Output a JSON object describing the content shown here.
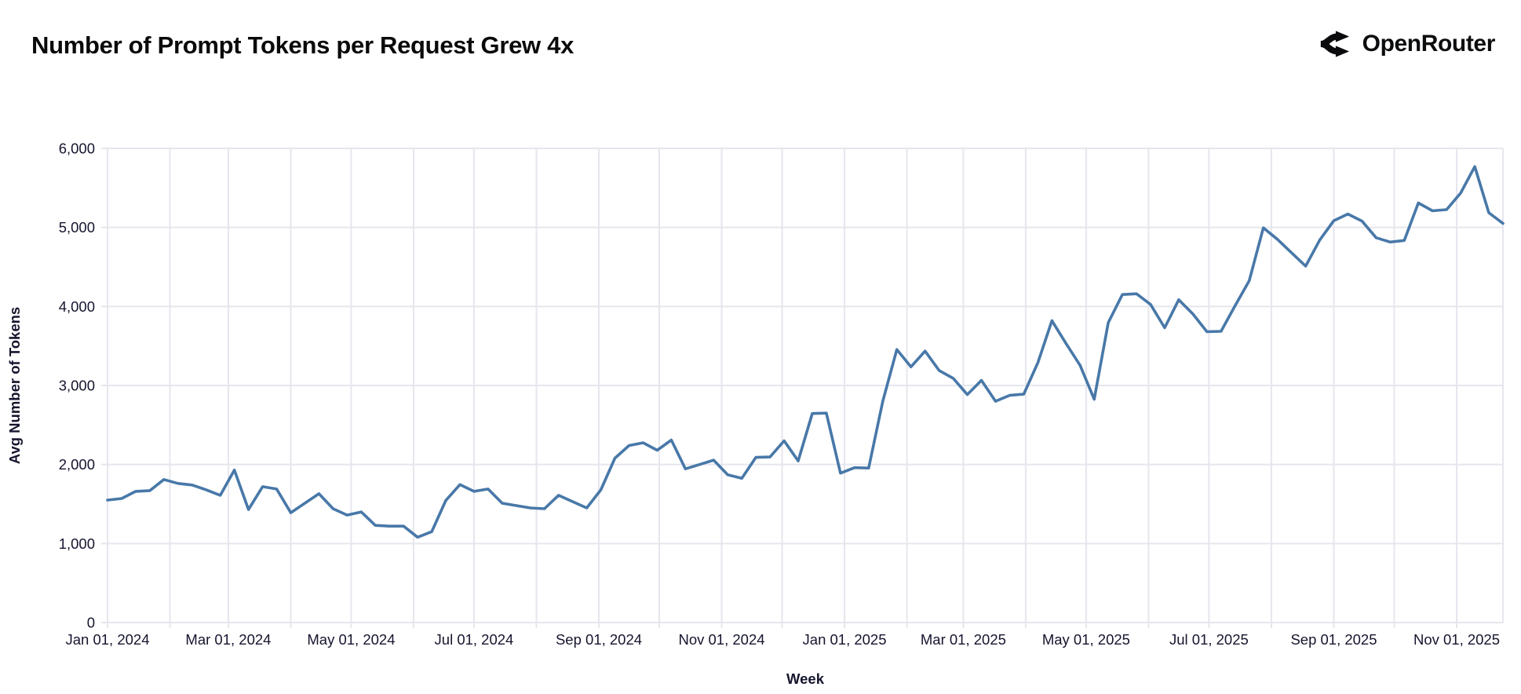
{
  "header": {
    "title": "Number of Prompt Tokens per Request Grew 4x",
    "logo_text": "OpenRouter"
  },
  "colors": {
    "line": "#4878a8",
    "grid": "#e6e6ee",
    "tick_text": "#15152e",
    "title_text": "#0a0a0a",
    "logo_black": "#0b0b0d"
  },
  "chart_data": {
    "type": "line",
    "title": "Number of Prompt Tokens per Request Grew 4x",
    "xlabel": "Week",
    "ylabel": "Avg Number of Tokens",
    "ylim": [
      0,
      6000
    ],
    "grid": true,
    "legend": "none",
    "line_color": "#4878a8",
    "y_ticks": [
      "0",
      "1,000",
      "2,000",
      "3,000",
      "4,000",
      "5,000",
      "6,000"
    ],
    "x_start": "2024-01-01",
    "x_interval_days": 7,
    "x_ticks": [
      {
        "date": "2024-01-01",
        "label": "Jan 01, 2024"
      },
      {
        "date": "2024-03-01",
        "label": "Mar 01, 2024"
      },
      {
        "date": "2024-05-01",
        "label": "May 01, 2024"
      },
      {
        "date": "2024-07-01",
        "label": "Jul 01, 2024"
      },
      {
        "date": "2024-09-01",
        "label": "Sep 01, 2024"
      },
      {
        "date": "2024-11-01",
        "label": "Nov 01, 2024"
      },
      {
        "date": "2025-01-01",
        "label": "Jan 01, 2025"
      },
      {
        "date": "2025-03-01",
        "label": "Mar 01, 2025"
      },
      {
        "date": "2025-05-01",
        "label": "May 01, 2025"
      },
      {
        "date": "2025-07-01",
        "label": "Jul 01, 2025"
      },
      {
        "date": "2025-09-01",
        "label": "Sep 01, 2025"
      },
      {
        "date": "2025-11-01",
        "label": "Nov 01, 2025"
      }
    ],
    "values": [
      1550,
      1570,
      1660,
      1670,
      1810,
      1760,
      1740,
      1680,
      1610,
      1930,
      1430,
      1720,
      1690,
      1390,
      1510,
      1630,
      1440,
      1360,
      1400,
      1230,
      1220,
      1220,
      1080,
      1150,
      1545,
      1745,
      1660,
      1690,
      1510,
      1480,
      1450,
      1440,
      1610,
      1530,
      1450,
      1680,
      2080,
      2240,
      2275,
      2180,
      2310,
      1945,
      2000,
      2055,
      1870,
      1825,
      2090,
      2095,
      2300,
      2045,
      2645,
      2650,
      1890,
      1960,
      1955,
      2800,
      3455,
      3235,
      3435,
      3190,
      3090,
      2885,
      3065,
      2800,
      2875,
      2890,
      3285,
      3820,
      3530,
      3255,
      2825,
      3795,
      4150,
      4160,
      4025,
      3730,
      4085,
      3905,
      3680,
      3685,
      4010,
      4325,
      4995,
      4850,
      4680,
      4510,
      4840,
      5085,
      5170,
      5080,
      4870,
      4815,
      4835,
      5310,
      5210,
      5225,
      5435,
      5770,
      5185,
      5050
    ]
  }
}
